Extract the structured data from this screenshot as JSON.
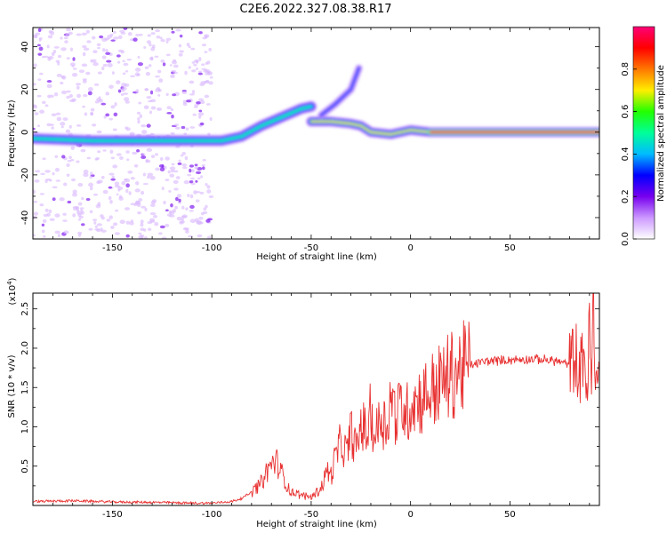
{
  "title": "C2E6.2022.327.08.38.R17",
  "chart_data": [
    {
      "type": "heatmap",
      "xlabel": "Height of straight line (km)",
      "ylabel": "Frequency (Hz)",
      "xlim": [
        -190,
        95
      ],
      "ylim": [
        -50,
        49
      ],
      "xticks": [
        -150,
        -100,
        -50,
        0,
        50
      ],
      "yticks": [
        -40,
        -20,
        0,
        20,
        40
      ],
      "colorbar": {
        "label": "Normalized spectral amplitude",
        "range": [
          0,
          1
        ],
        "ticks": [
          "0.0",
          "0.2",
          "0.4",
          "0.6",
          "0.8"
        ],
        "colors": [
          "#ffffff",
          "#cc99ff",
          "#7700ee",
          "#0000ff",
          "#00bbff",
          "#00ff99",
          "#22ff00",
          "#ffee00",
          "#ff7700",
          "#ff0000",
          "#ff0077"
        ]
      },
      "ridge_track": [
        {
          "x": -190,
          "y": -3
        },
        {
          "x": -160,
          "y": -4
        },
        {
          "x": -130,
          "y": -4
        },
        {
          "x": -105,
          "y": -4
        },
        {
          "x": -95,
          "y": -4
        },
        {
          "x": -85,
          "y": -2
        },
        {
          "x": -75,
          "y": 3
        },
        {
          "x": -65,
          "y": 7
        },
        {
          "x": -55,
          "y": 11
        },
        {
          "x": -50,
          "y": 12
        }
      ],
      "ridge_track_2": [
        {
          "x": -50,
          "y": 5
        },
        {
          "x": -40,
          "y": 5
        },
        {
          "x": -30,
          "y": 4
        },
        {
          "x": -25,
          "y": 3
        },
        {
          "x": -20,
          "y": 0
        },
        {
          "x": -10,
          "y": -1
        },
        {
          "x": 0,
          "y": 1
        },
        {
          "x": 10,
          "y": 0
        },
        {
          "x": 50,
          "y": 0
        },
        {
          "x": 95,
          "y": 0
        }
      ],
      "ridge_track_3": [
        {
          "x": -45,
          "y": 8
        },
        {
          "x": -38,
          "y": 13
        },
        {
          "x": -30,
          "y": 20
        },
        {
          "x": -26,
          "y": 30
        }
      ]
    },
    {
      "type": "line",
      "xlabel": "Height of straight line (km)",
      "ylabel": "SNR (10 * v/v)",
      "y_multiplier_label": "(x10",
      "y_multiplier_exp": "4",
      "y_multiplier_close": ")",
      "xlim": [
        -190,
        95
      ],
      "ylim": [
        0,
        27000
      ],
      "xticks": [
        -150,
        -100,
        -50,
        0,
        50
      ],
      "yticks": [
        5000,
        10000,
        15000,
        20000,
        25000
      ],
      "ytick_labels": [
        "0.5",
        "1.0",
        "1.5",
        "2.0",
        "2.5"
      ],
      "line_color": "#e83030",
      "series": [
        {
          "x": [
            -190,
            -170,
            -150,
            -130,
            -110,
            -100,
            -90,
            -85,
            -80,
            -75,
            -72,
            -68,
            -65,
            -62,
            -60,
            -55,
            -50,
            -45,
            -42,
            -40,
            -38,
            -35,
            -32,
            -30,
            -27,
            -25,
            -22,
            -20,
            -18,
            -15,
            -12,
            -10,
            -7,
            -5,
            -2,
            0,
            5,
            10,
            15,
            20,
            25,
            30,
            35,
            40,
            50,
            60,
            70,
            75,
            80,
            83,
            85,
            87,
            89,
            90,
            91,
            92,
            93,
            94,
            95
          ],
          "y": [
            500,
            600,
            450,
            400,
            300,
            300,
            500,
            900,
            1700,
            2900,
            4500,
            5800,
            4200,
            2400,
            1700,
            1300,
            1100,
            2200,
            4500,
            3800,
            6000,
            8000,
            6500,
            9500,
            7000,
            10500,
            9000,
            12000,
            8500,
            11500,
            10000,
            14000,
            11000,
            13000,
            11500,
            13200,
            13500,
            14500,
            15500,
            16500,
            17300,
            17800,
            18200,
            18400,
            18500,
            18600,
            18500,
            18300,
            17800,
            19500,
            16000,
            20000,
            14500,
            22500,
            15000,
            26000,
            13000,
            17500,
            21000
          ]
        }
      ]
    }
  ]
}
